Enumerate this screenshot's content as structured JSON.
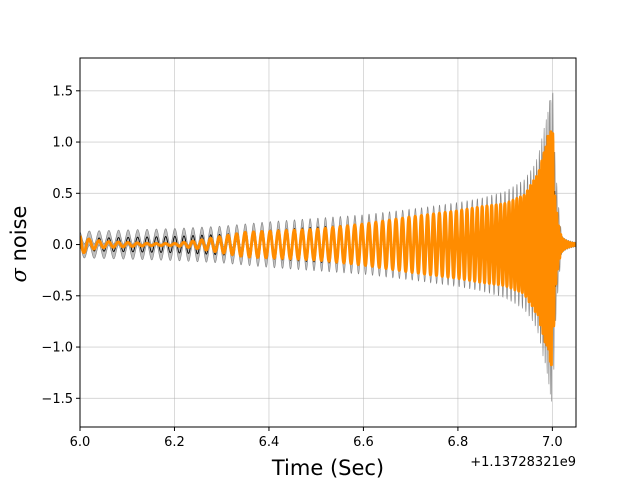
{
  "chart_data": {
    "type": "line",
    "title": "",
    "xlabel": "Time (Sec)",
    "ylabel": {
      "symbol": "σ",
      "text": " noise"
    },
    "x_offset_label": "+1.13728321e9",
    "xlim": [
      6.0,
      7.05
    ],
    "ylim": [
      -1.78,
      1.82
    ],
    "grid": true,
    "legend": "none",
    "x_ticks": [
      {
        "value": 6.0,
        "label": "6.0"
      },
      {
        "value": 6.2,
        "label": "6.2"
      },
      {
        "value": 6.4,
        "label": "6.4"
      },
      {
        "value": 6.6,
        "label": "6.6"
      },
      {
        "value": 6.8,
        "label": "6.8"
      },
      {
        "value": 7.0,
        "label": "7.0"
      }
    ],
    "y_ticks": [
      {
        "value": 1.5,
        "label": "1.5"
      },
      {
        "value": 1.0,
        "label": "1.0"
      },
      {
        "value": 0.5,
        "label": "0.5"
      },
      {
        "value": 0.0,
        "label": "0.0"
      },
      {
        "value": -0.5,
        "label": "−0.5"
      },
      {
        "value": -1.0,
        "label": "−1.0"
      },
      {
        "value": -1.5,
        "label": "−1.5"
      }
    ],
    "series": [
      {
        "role": "model band",
        "color": "#808080",
        "shape": "chirp",
        "t_merge": 7.0,
        "phase0": 0.4,
        "envelope": [
          [
            6.0,
            0.06
          ],
          [
            6.1,
            0.07
          ],
          [
            6.2,
            0.08
          ],
          [
            6.3,
            0.1
          ],
          [
            6.4,
            0.14
          ],
          [
            6.5,
            0.17
          ],
          [
            6.6,
            0.2
          ],
          [
            6.7,
            0.24
          ],
          [
            6.8,
            0.29
          ],
          [
            6.85,
            0.32
          ],
          [
            6.9,
            0.37
          ],
          [
            6.94,
            0.45
          ],
          [
            6.97,
            0.62
          ],
          [
            6.99,
            0.95
          ],
          [
            7.0,
            1.15
          ],
          [
            7.005,
            0.6
          ],
          [
            7.02,
            0.12
          ],
          [
            7.05,
            0.02
          ]
        ],
        "band_halfwidth": [
          [
            6.0,
            0.07
          ],
          [
            6.3,
            0.08
          ],
          [
            6.6,
            0.09
          ],
          [
            6.8,
            0.12
          ],
          [
            6.9,
            0.15
          ],
          [
            6.96,
            0.2
          ],
          [
            6.99,
            0.35
          ],
          [
            7.0,
            0.5
          ],
          [
            7.02,
            0.04
          ],
          [
            7.05,
            0.02
          ]
        ]
      },
      {
        "role": "model median",
        "color": "#000000",
        "shape": "chirp",
        "t_merge": 7.0,
        "phase0": 0.4,
        "envelope_ref": 0
      },
      {
        "role": "whitened data",
        "color": "#ff8c00",
        "shape": "chirp",
        "t_merge": 7.0,
        "phase0": 0.55,
        "envelope": [
          [
            6.0,
            0.1
          ],
          [
            6.02,
            0.05
          ],
          [
            6.05,
            0.03
          ],
          [
            6.1,
            0.02
          ],
          [
            6.15,
            0.01
          ],
          [
            6.2,
            0.01
          ],
          [
            6.25,
            0.04
          ],
          [
            6.3,
            0.08
          ],
          [
            6.35,
            0.12
          ],
          [
            6.4,
            0.13
          ],
          [
            6.5,
            0.15
          ],
          [
            6.6,
            0.2
          ],
          [
            6.7,
            0.27
          ],
          [
            6.8,
            0.33
          ],
          [
            6.85,
            0.37
          ],
          [
            6.9,
            0.4
          ],
          [
            6.94,
            0.48
          ],
          [
            6.97,
            0.7
          ],
          [
            6.99,
            1.05
          ],
          [
            7.0,
            1.22
          ],
          [
            7.005,
            0.55
          ],
          [
            7.02,
            0.18
          ],
          [
            7.05,
            0.12
          ]
        ]
      }
    ]
  }
}
